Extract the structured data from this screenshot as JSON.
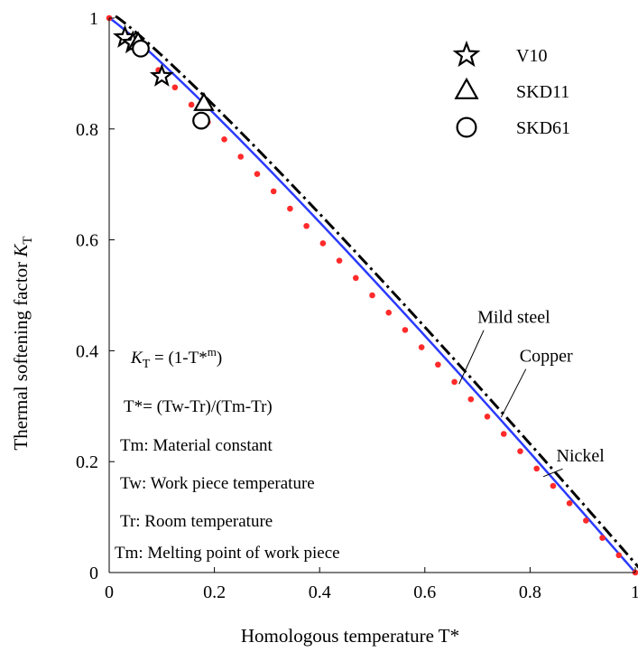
{
  "chart_data": {
    "type": "scatter",
    "xlabel": "Homologous temperature  T*",
    "ylabel_main": "Thermal softening factor  ",
    "ylabel_sym": "K",
    "ylabel_sub": "T",
    "xlim": [
      0,
      1
    ],
    "ylim": [
      0,
      1
    ],
    "x_ticks": [
      {
        "value": 0,
        "label": "0"
      },
      {
        "value": 0.2,
        "label": "0.2"
      },
      {
        "value": 0.4,
        "label": "0.4"
      },
      {
        "value": 0.6,
        "label": "0.6"
      },
      {
        "value": 0.8,
        "label": "0.8"
      },
      {
        "value": 1,
        "label": "1"
      }
    ],
    "y_ticks": [
      {
        "value": 0,
        "label": "0"
      },
      {
        "value": 0.2,
        "label": "0.2"
      },
      {
        "value": 0.4,
        "label": "0.4"
      },
      {
        "value": 0.6,
        "label": "0.6"
      },
      {
        "value": 0.8,
        "label": "0.8"
      },
      {
        "value": 1,
        "label": "1"
      }
    ],
    "curves": [
      {
        "name": "Nickel",
        "m": 1.09,
        "color": "#2b3bff",
        "style": "solid",
        "label_at": [
          0.85,
          0.2
        ],
        "leader_to": [
          0.825,
          0.173
        ]
      },
      {
        "name": "Copper",
        "m": 1.09,
        "color": "#000000",
        "style": "dashdot",
        "label_at": [
          0.78,
          0.38
        ],
        "leader_to": [
          0.745,
          0.28
        ]
      },
      {
        "name": "Mild steel",
        "m": 1.0,
        "color": "#ff2a2a",
        "style": "dots",
        "label_at": [
          0.7,
          0.45
        ],
        "leader_to": [
          0.665,
          0.34
        ]
      }
    ],
    "series": [
      {
        "name": "V10",
        "marker": "star",
        "points": [
          [
            0.03,
            0.965
          ],
          [
            0.045,
            0.955
          ],
          [
            0.1,
            0.895
          ]
        ]
      },
      {
        "name": "SKD11",
        "marker": "triangle",
        "points": [
          [
            0.055,
            0.955
          ],
          [
            0.18,
            0.845
          ]
        ]
      },
      {
        "name": "SKD61",
        "marker": "circle",
        "points": [
          [
            0.06,
            0.945
          ],
          [
            0.175,
            0.815
          ]
        ]
      }
    ],
    "legend": {
      "placement": "top-right"
    },
    "annotations": {
      "kt_sym": "K",
      "kt_sub": "T",
      "kt_rest": " = (1-T*",
      "kt_sup": "m",
      "kt_close": ")",
      "tstar_def": "T*= (Tw-Tr)/(Tm-Tr)",
      "tm_constant": "Tm: Material constant",
      "tw_def": "Tw: Work piece temperature",
      "tr_def": "Tr: Room temperature",
      "tm_melting": "Tm: Melting point of work piece"
    },
    "grid": false
  }
}
